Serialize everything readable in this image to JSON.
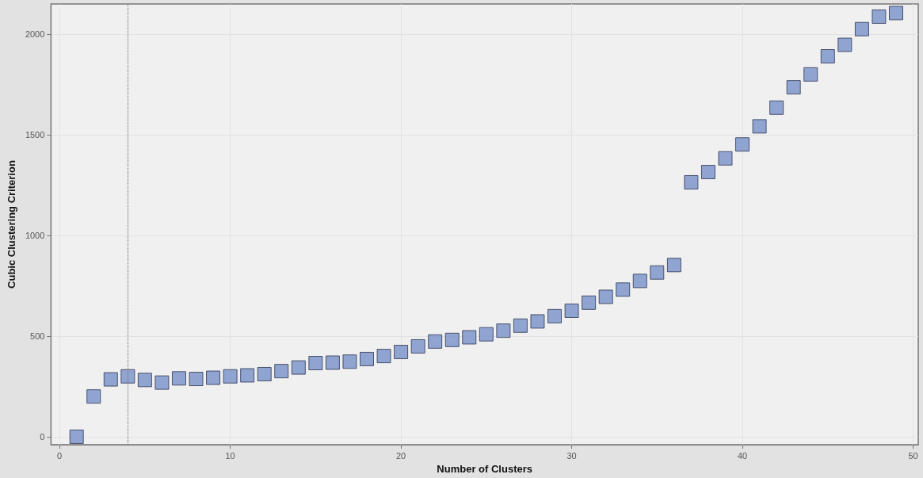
{
  "chart_data": {
    "type": "scatter",
    "xlabel": "Number of Clusters",
    "ylabel": "Cubic Clustering Criterion",
    "x": [
      1,
      2,
      3,
      4,
      5,
      6,
      7,
      8,
      9,
      10,
      11,
      12,
      13,
      14,
      15,
      16,
      17,
      18,
      19,
      20,
      21,
      22,
      23,
      24,
      25,
      26,
      27,
      28,
      29,
      30,
      31,
      32,
      33,
      34,
      35,
      36,
      37,
      38,
      39,
      40,
      41,
      42,
      43,
      44,
      45,
      46,
      47,
      48,
      49
    ],
    "values": [
      0,
      200,
      285,
      300,
      282,
      269,
      290,
      287,
      293,
      300,
      305,
      311,
      326,
      344,
      366,
      368,
      373,
      386,
      401,
      421,
      449,
      473,
      481,
      494,
      509,
      527,
      552,
      573,
      599,
      626,
      666,
      695,
      731,
      774,
      816,
      853,
      1264,
      1315,
      1383,
      1452,
      1542,
      1635,
      1736,
      1800,
      1890,
      1947,
      2025,
      2087,
      2105
    ],
    "color": "#7891c9",
    "marker": "square",
    "xlim": [
      -0.5,
      50.3
    ],
    "xticks": [
      0,
      10,
      20,
      30,
      40,
      50
    ],
    "ylim": [
      -40,
      2150
    ],
    "yticks": [
      0,
      500,
      1000,
      1500,
      2000
    ],
    "grid": true,
    "ref_lines": [
      {
        "axis": "x",
        "value": 4,
        "line_style": "dotted",
        "color": "#777777"
      }
    ]
  }
}
